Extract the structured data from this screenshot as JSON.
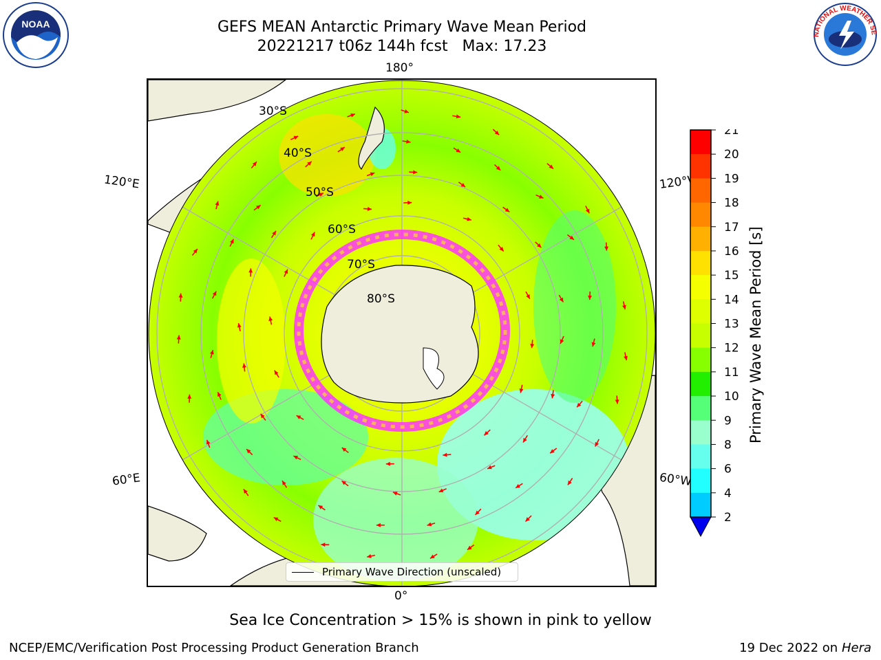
{
  "header": {
    "title_line1": "GEFS MEAN Antarctic Primary Wave Mean Period",
    "title_line2": "20221217 t06z 144h fcst   Max: 17.23"
  },
  "logos": {
    "left": {
      "icon": "noaa-logo-icon",
      "text": "NOAA"
    },
    "right": {
      "icon": "nws-logo-icon",
      "text": "NATIONAL WEATHER SERVICE"
    }
  },
  "map": {
    "longitude_labels": {
      "top": "180°",
      "bottom": "0°",
      "upper_left": "120°E",
      "upper_right": "120°W",
      "lower_left": "60°E",
      "lower_right": "60°W"
    },
    "latitude_labels": [
      "30°S",
      "40°S",
      "50°S",
      "60°S",
      "70°S",
      "80°S"
    ],
    "legend": "Primary Wave Direction (unscaled)",
    "colors": {
      "land": "#efeddc",
      "ice_edge": "#ff33ff",
      "arrows": "#ff0000",
      "grid": "#b0b0b0"
    }
  },
  "colorbar": {
    "label": "Primary Wave Mean Period [s]",
    "ticks": [
      "21",
      "20",
      "19",
      "18",
      "17",
      "16",
      "15",
      "14",
      "13",
      "12",
      "11",
      "10",
      "9",
      "8",
      "6",
      "4",
      "2"
    ],
    "colors": [
      "#ff0000",
      "#ff3300",
      "#ff6600",
      "#ff8800",
      "#ffb000",
      "#ffe100",
      "#f5ff00",
      "#ddff00",
      "#c8ff00",
      "#88ff00",
      "#22ee00",
      "#55ff77",
      "#99ffcc",
      "#66ffee",
      "#22ffff",
      "#00ccff",
      "#0066ff"
    ],
    "extend_color": "#0000ee"
  },
  "footer": {
    "note": "Sea Ice Concentration > 15% is shown in pink to yellow",
    "credit": "NCEP/EMC/Verification Post Processing Product Generation Branch",
    "date": "19 Dec 2022 on",
    "host": "Hera"
  }
}
